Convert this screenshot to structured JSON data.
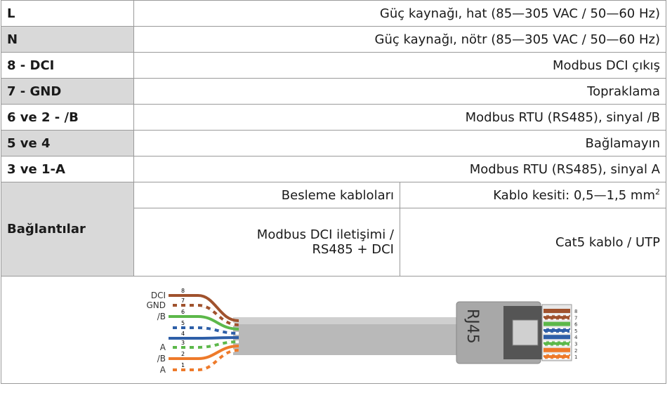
{
  "table": {
    "rows": [
      [
        "L",
        "Güç kaynağı, hat (85—305 VAC / 50—60 Hz)"
      ],
      [
        "N",
        "Güç kaynağı, nötr (85—305 VAC / 50—60 Hz)"
      ],
      [
        "8 - DCI",
        "Modbus DCI çıkış"
      ],
      [
        "7 - GND",
        "Topraklama"
      ],
      [
        "6 ve 2 - /B",
        "Modbus RTU (RS485), sinyal /B"
      ],
      [
        "5 ve 4",
        "Bağlamayın"
      ],
      [
        "3 ve 1-A",
        "Modbus RTU (RS485), sinyal A"
      ]
    ],
    "connections": {
      "label": "Bağlantılar",
      "rows": [
        {
          "left": [
            "Besleme kabloları"
          ],
          "right": "Kablo kesiti: 0,5—1,5 mm",
          "right_sup": "2"
        },
        {
          "left": [
            "Modbus DCI iletişimi /",
            "RS485 + DCI"
          ],
          "right": "Cat5 kablo / UTP"
        }
      ]
    }
  },
  "diagram": {
    "wire_labels": [
      "DCI",
      "GND",
      "/B",
      "A",
      "/B",
      "A"
    ],
    "wire_numbers": [
      "8",
      "7",
      "6",
      "5",
      "4",
      "3",
      "2",
      "1"
    ],
    "connector": "RJ45",
    "pin_numbers": [
      "8",
      "7",
      "6",
      "5",
      "4",
      "3",
      "2",
      "1"
    ]
  }
}
